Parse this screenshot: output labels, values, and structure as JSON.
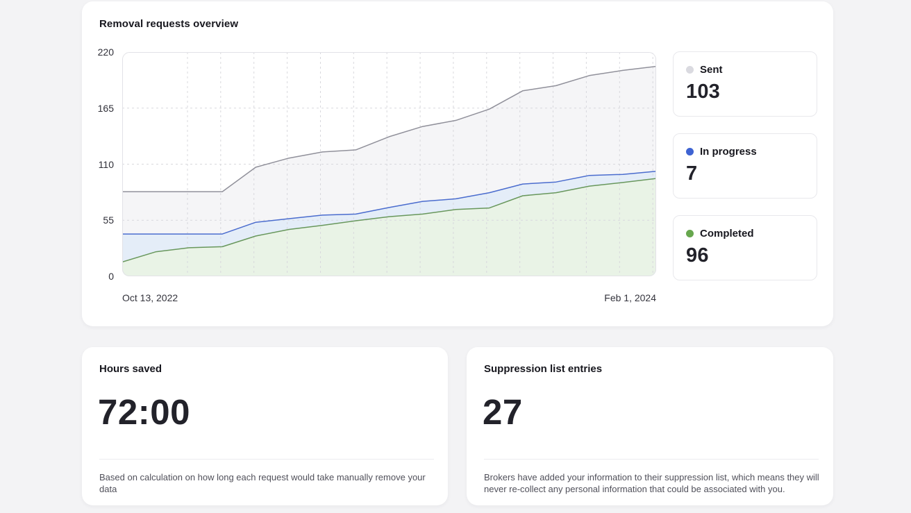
{
  "overview": {
    "title": "Removal requests overview",
    "x_start": "Oct 13, 2022",
    "x_end": "Feb 1, 2024"
  },
  "legend": [
    {
      "label": "Sent",
      "value": "103",
      "color": "#dadae0"
    },
    {
      "label": "In progress",
      "value": "7",
      "color": "#3e63d2"
    },
    {
      "label": "Completed",
      "value": "96",
      "color": "#67a74e"
    }
  ],
  "stats": [
    {
      "title": "Hours saved",
      "value": "72:00",
      "description": "Based on calculation on how long each request would take manually remove your data"
    },
    {
      "title": "Suppression list entries",
      "value": "27",
      "description": "Brokers have added your information to their suppression list, which means they will never re-collect any personal information that could be associated with you."
    }
  ],
  "chart_data": {
    "type": "area",
    "stacked": true,
    "title": "Removal requests overview",
    "xlabel": "",
    "ylabel": "",
    "x_range": [
      "Oct 13, 2022",
      "Feb 1, 2024"
    ],
    "ylim": [
      0,
      220
    ],
    "y_ticks": [
      220,
      165,
      110,
      55,
      0
    ],
    "grid": true,
    "legend_position": "right",
    "grid_color": "#d8d8dd",
    "plot_border_color": "#e2e2e7",
    "series": [
      {
        "name": "Sent",
        "current_total": 103,
        "line_color": "#90909a",
        "fill_color": "#f5f5f7",
        "cumulative_values": [
          83,
          83,
          83,
          83,
          107,
          116,
          122,
          124,
          137,
          147,
          153,
          164,
          182,
          187,
          197,
          202,
          206
        ]
      },
      {
        "name": "In progress",
        "current_total": 7,
        "line_color": "#4a6cce",
        "fill_color": "#e4edf8",
        "cumulative_values": [
          41.5,
          41.5,
          41.5,
          41.5,
          53,
          56.5,
          60,
          61,
          67.5,
          73.5,
          76,
          82,
          90.5,
          92.5,
          99,
          100,
          103
        ]
      },
      {
        "name": "Completed",
        "current_total": 96,
        "line_color": "#68975c",
        "fill_color": "#e9f3e6",
        "cumulative_values": [
          14,
          24,
          28,
          29,
          39.5,
          46,
          50,
          54.5,
          58.5,
          61,
          65.5,
          67,
          79,
          82,
          88.5,
          92,
          96
        ]
      }
    ]
  }
}
